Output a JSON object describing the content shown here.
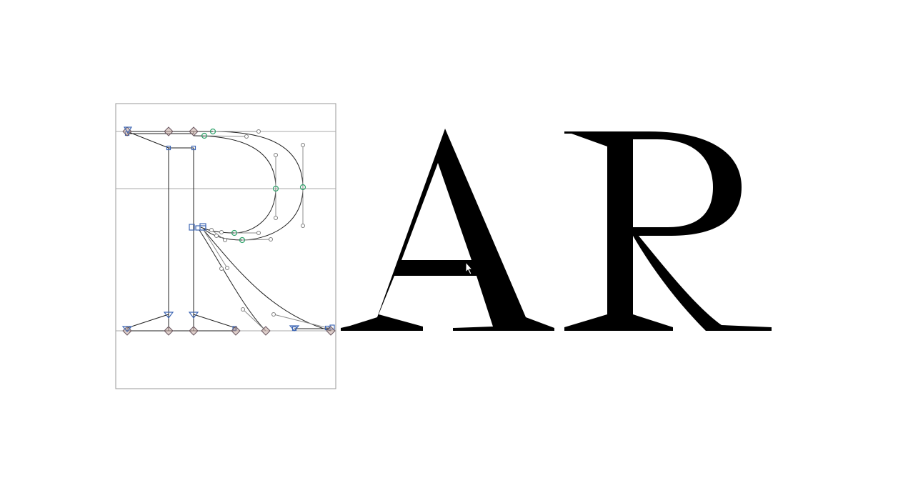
{
  "editor": {
    "preview_text": "AR",
    "edited_glyph": "R",
    "preview_glyphs": [
      "A",
      "R"
    ]
  },
  "colors": {
    "background": "#ffffff",
    "outline": "#222222",
    "guide": "#a9a9a9",
    "smooth_point": "#2fa36b",
    "corner_point": "#3f67b4",
    "tangent_point": "#c7a9a3",
    "glyph_fill": "#000000"
  },
  "icons": {
    "cursor": "mouse-pointer-icon"
  }
}
